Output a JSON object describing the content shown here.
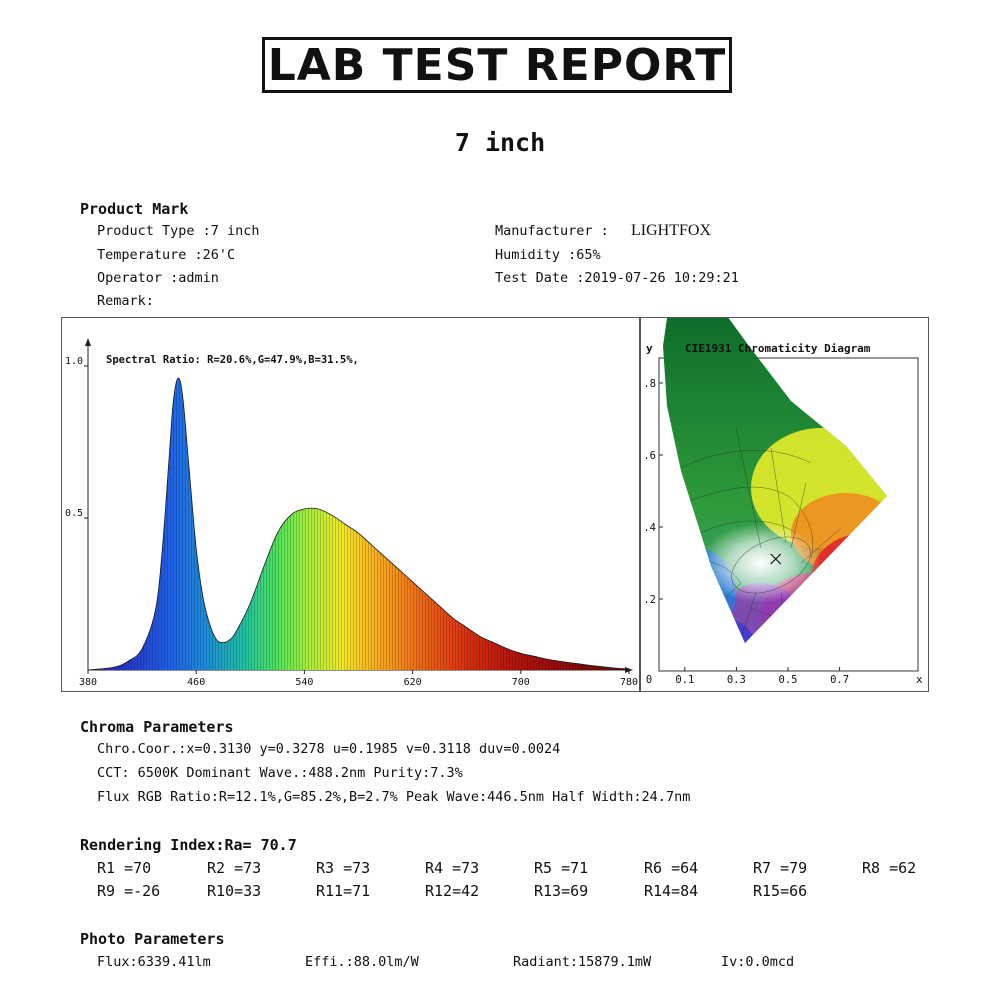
{
  "header": {
    "title": "LAB TEST REPORT",
    "subtitle": "7 inch"
  },
  "product": {
    "section": "Product Mark",
    "type": "Product Type :7 inch",
    "temperature": "Temperature :26'C",
    "operator": "Operator :admin",
    "remark": "Remark:",
    "manufacturer_label": "Manufacturer :",
    "manufacturer_value": "LIGHTFOX",
    "humidity": "Humidity :65%",
    "test_date": "Test Date :2019-07-26 10:29:21"
  },
  "chart_data": [
    {
      "type": "area",
      "title": "",
      "annotation": "Spectral Ratio:  R=20.6%,G=47.9%,B=31.5%,",
      "xlabel": "",
      "ylabel": "",
      "xlim": [
        380,
        780
      ],
      "ylim": [
        0,
        1.0
      ],
      "x_ticks": [
        "380",
        "460",
        "540",
        "620",
        "700",
        "780"
      ],
      "y_ticks": [
        "1.0",
        "0.5"
      ],
      "x": [
        380,
        400,
        410,
        420,
        430,
        435,
        440,
        443,
        446.5,
        450,
        455,
        460,
        465,
        470,
        475,
        480,
        485,
        490,
        500,
        510,
        520,
        530,
        540,
        550,
        560,
        570,
        580,
        590,
        600,
        610,
        620,
        630,
        640,
        650,
        660,
        670,
        680,
        690,
        700,
        710,
        720,
        730,
        740,
        750,
        760,
        770,
        780
      ],
      "y": [
        0.0,
        0.01,
        0.03,
        0.07,
        0.2,
        0.4,
        0.7,
        0.88,
        0.96,
        0.9,
        0.65,
        0.4,
        0.24,
        0.15,
        0.1,
        0.09,
        0.1,
        0.13,
        0.22,
        0.34,
        0.45,
        0.51,
        0.53,
        0.53,
        0.51,
        0.48,
        0.45,
        0.41,
        0.37,
        0.33,
        0.29,
        0.25,
        0.21,
        0.17,
        0.14,
        0.11,
        0.09,
        0.07,
        0.055,
        0.045,
        0.035,
        0.028,
        0.022,
        0.016,
        0.011,
        0.006,
        0.003
      ]
    },
    {
      "type": "scatter",
      "title": "CIE1931 Chromaticity Diagram",
      "xlabel": "x",
      "ylabel": "y",
      "x_ticks": [
        "0",
        "0.1",
        "0.3",
        "0.5",
        "0.7"
      ],
      "y_ticks": [
        ".8",
        ".6",
        ".4",
        ".2"
      ],
      "point": {
        "x": 0.313,
        "y": 0.3278
      }
    }
  ],
  "chroma": {
    "section": "Chroma Parameters",
    "line1": "Chro.Coor.:x=0.3130  y=0.3278    u=0.1985  v=0.3118    duv=0.0024",
    "line2": "CCT: 6500K  Dominant Wave.:488.2nm  Purity:7.3%",
    "line3": "Flux RGB Ratio:R=12.1%,G=85.2%,B=2.7%   Peak Wave:446.5nm   Half Width:24.7nm"
  },
  "rendering": {
    "section": "Rendering Index:Ra= 70.7",
    "values": [
      "R1 =70",
      "R2 =73",
      "R3 =73",
      "R4 =73",
      "R5 =71",
      "R6 =64",
      "R7 =79",
      "R8 =62",
      "R9 =-26",
      "R10=33",
      "R11=71",
      "R12=42",
      "R13=69",
      "R14=84",
      "R15=66"
    ]
  },
  "photo": {
    "section": "Photo Parameters",
    "flux": "Flux:6339.41lm",
    "effi": "Effi.:88.0lm/W",
    "radiant": "Radiant:15879.1mW",
    "iv": "Iv:0.0mcd"
  },
  "colors": {
    "text": "#111111",
    "curve_outline": "#1a1a1a"
  }
}
